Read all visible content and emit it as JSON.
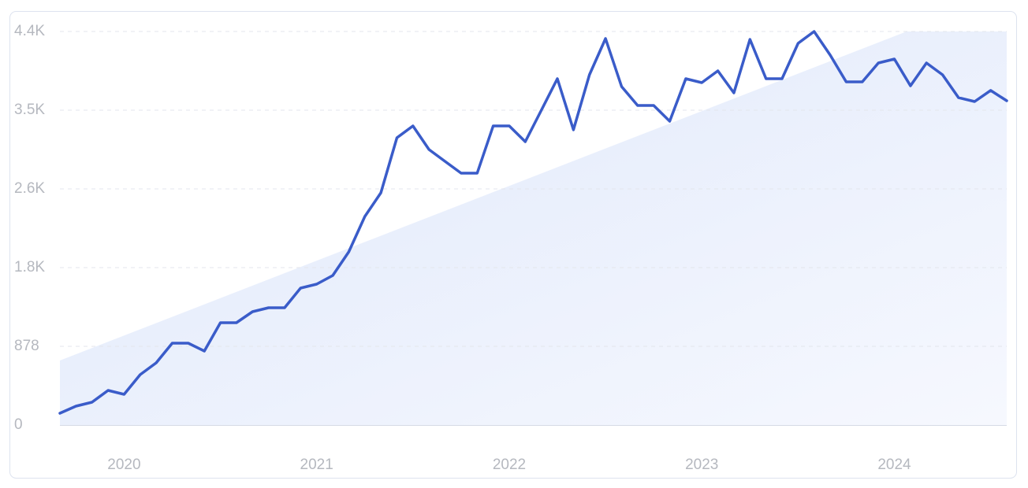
{
  "chart_data": {
    "type": "line",
    "categories": [
      null,
      null,
      null,
      null,
      "2020",
      null,
      null,
      null,
      null,
      null,
      null,
      null,
      null,
      null,
      null,
      null,
      "2021",
      null,
      null,
      null,
      null,
      null,
      null,
      null,
      null,
      null,
      null,
      null,
      "2022",
      null,
      null,
      null,
      null,
      null,
      null,
      null,
      null,
      null,
      null,
      null,
      "2023",
      null,
      null,
      null,
      null,
      null,
      null,
      null,
      null,
      null,
      null,
      null,
      "2024",
      null,
      null,
      null,
      null,
      null,
      null,
      null
    ],
    "series": [
      {
        "color": "#3a5cc9",
        "values": [
          132,
          211,
          255,
          386,
          342,
          562,
          694,
          913,
          913,
          825,
          1141,
          1141,
          1264,
          1308,
          1308,
          1528,
          1572,
          1668,
          1932,
          2327,
          2590,
          3205,
          3336,
          3073,
          2941,
          2810,
          2810,
          3336,
          3336,
          3161,
          3512,
          3863,
          3293,
          3907,
          4311,
          3775,
          3565,
          3565,
          3389,
          3863,
          3819,
          3951,
          3705,
          4302,
          3863,
          3863,
          4258,
          4390,
          4127,
          3828,
          3828,
          4039,
          4083,
          3784,
          4039,
          3907,
          3652,
          3609,
          3732,
          3617
        ]
      }
    ],
    "ylim": [
      0,
      4390
    ],
    "yticks": [
      0,
      878,
      {
        "value": 1756,
        "label": "1.8K"
      },
      {
        "value": 2634,
        "label": "2.6K"
      },
      {
        "value": 3512,
        "label": "3.5K"
      },
      {
        "value": 4390,
        "label": "4.4K"
      }
    ],
    "grid": true
  }
}
